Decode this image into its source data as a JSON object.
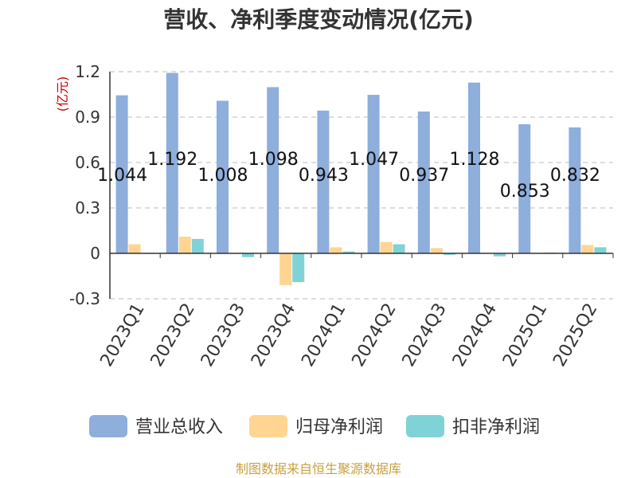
{
  "chart_data": {
    "type": "bar",
    "title": "营收、净利季度变动情况(亿元)",
    "unit_label": "(亿元)",
    "categories": [
      "2023Q1",
      "2023Q2",
      "2023Q3",
      "2023Q4",
      "2024Q1",
      "2024Q2",
      "2024Q3",
      "2024Q4",
      "2025Q1",
      "2025Q2"
    ],
    "series": [
      {
        "name": "营业总收入",
        "color": "#8eaedc",
        "values": [
          1.044,
          1.192,
          1.008,
          1.098,
          0.943,
          1.047,
          0.937,
          1.128,
          0.853,
          0.832
        ],
        "labels": [
          "1.044",
          "1.192",
          "1.008",
          "1.098",
          "0.943",
          "1.047",
          "0.937",
          "1.128",
          "0.853",
          "0.832"
        ]
      },
      {
        "name": "归母净利润",
        "color": "#ffd591",
        "values": [
          0.06,
          0.11,
          0.002,
          -0.21,
          0.04,
          0.075,
          0.035,
          0.003,
          0.002,
          0.055
        ]
      },
      {
        "name": "扣非净利润",
        "color": "#7fd3d6",
        "values": [
          0.002,
          0.095,
          -0.025,
          -0.19,
          0.012,
          0.06,
          -0.01,
          -0.02,
          0.005,
          0.04
        ]
      }
    ],
    "ylim": [
      -0.3,
      1.2
    ],
    "yticks": [
      -0.3,
      0,
      0.3,
      0.6,
      0.9,
      1.2
    ],
    "ytick_labels": [
      "-0.3",
      "0",
      "0.3",
      "0.6",
      "0.9",
      "1.2"
    ],
    "grid": true,
    "legend_position": "bottom"
  },
  "footer": {
    "source": "制图数据来自恒生聚源数据库"
  }
}
